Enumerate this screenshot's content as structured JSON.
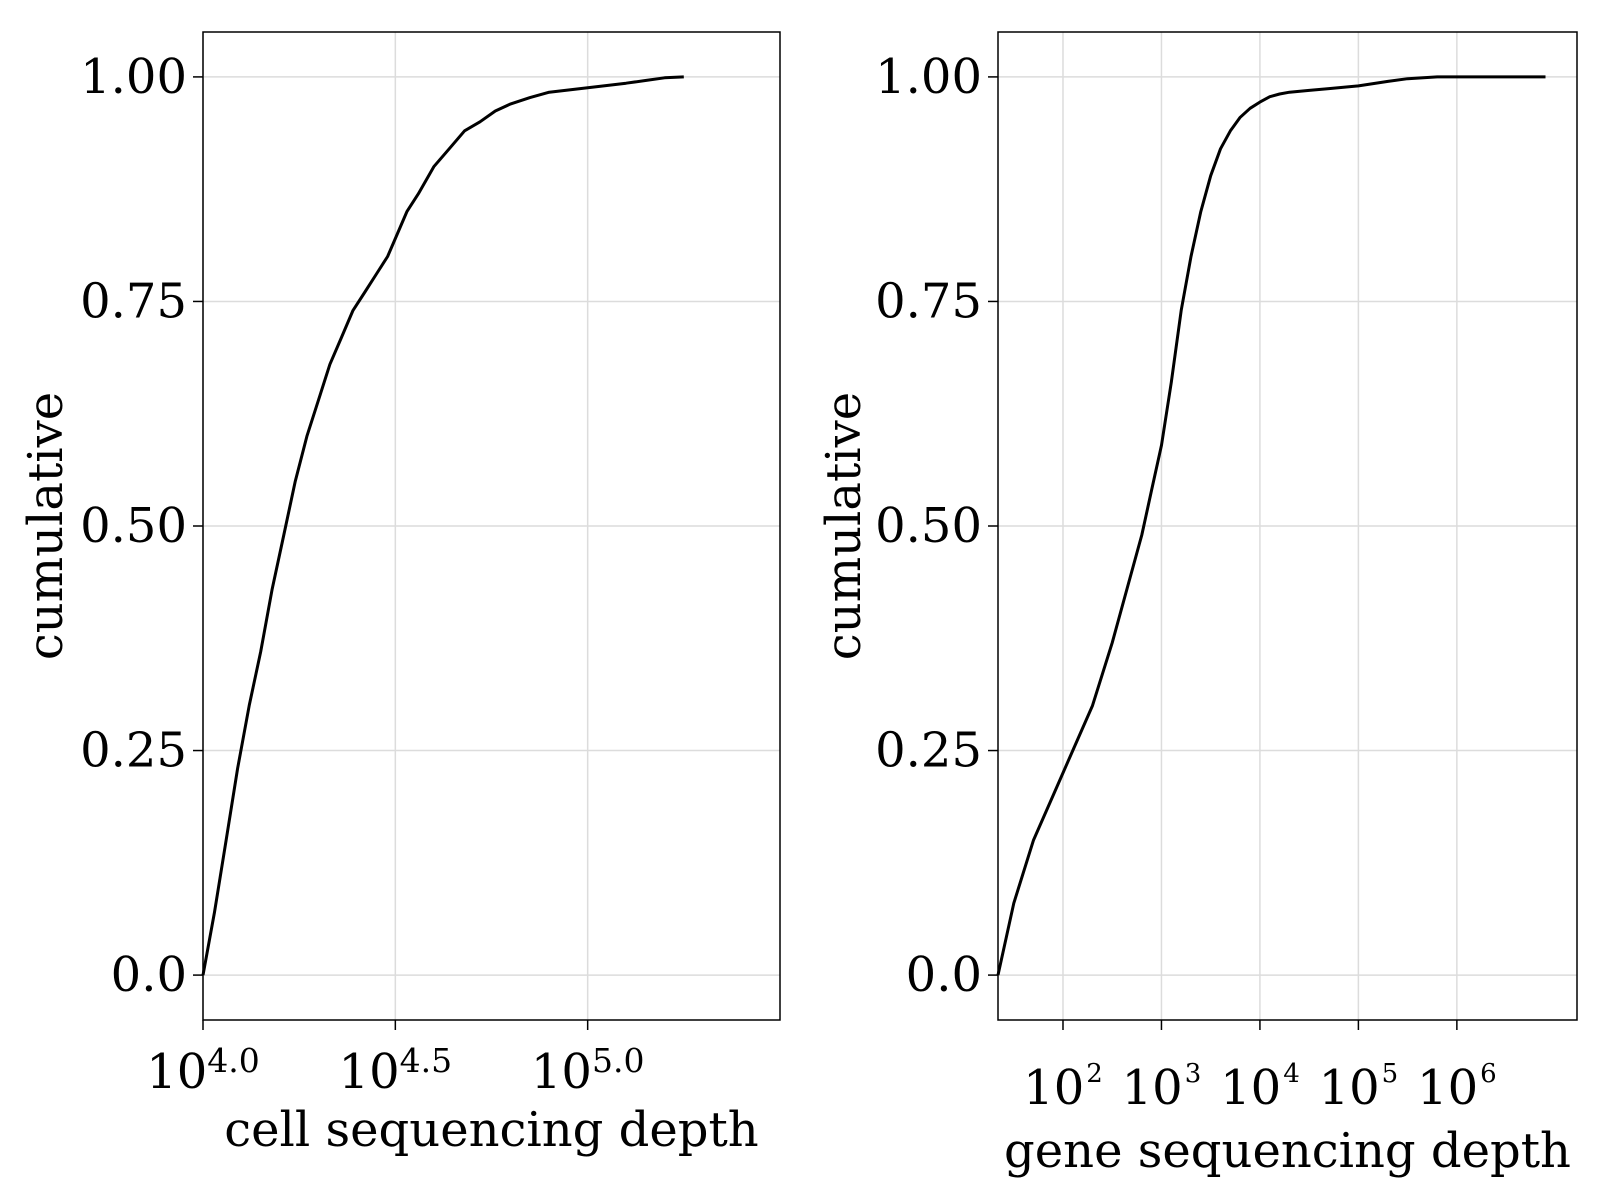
{
  "style": {
    "line_color": "#000000",
    "grid_color": "#dcdcdc",
    "frame_color": "#000000",
    "background": "#ffffff"
  },
  "chart_data": [
    {
      "type": "line",
      "xlabel": "cell sequencing depth",
      "ylabel": "cumulative",
      "xscale": "log10",
      "xlim_log10": [
        4.0,
        5.5
      ],
      "ylim": [
        -0.05,
        1.05
      ],
      "grid": true,
      "legend": "none",
      "y_ticks": [
        0.0,
        0.25,
        0.5,
        0.75,
        1.0
      ],
      "y_tick_labels": [
        "0.0",
        "0.25",
        "0.50",
        "0.75",
        "1.00"
      ],
      "x_ticks": [
        {
          "base": "10",
          "exp": "4.0",
          "log10": 4.0
        },
        {
          "base": "10",
          "exp": "4.5",
          "log10": 4.5
        },
        {
          "base": "10",
          "exp": "5.0",
          "log10": 5.0
        }
      ],
      "series": [
        {
          "x_log10": [
            4.0,
            4.03,
            4.06,
            4.09,
            4.12,
            4.15,
            4.18,
            4.21,
            4.24,
            4.27,
            4.3,
            4.33,
            4.36,
            4.39,
            4.42,
            4.45,
            4.48,
            4.5,
            4.53,
            4.56,
            4.6,
            4.64,
            4.68,
            4.72,
            4.76,
            4.8,
            4.85,
            4.9,
            5.0,
            5.1,
            5.15,
            5.2,
            5.25
          ],
          "y": [
            0.0,
            0.07,
            0.15,
            0.23,
            0.3,
            0.36,
            0.43,
            0.49,
            0.55,
            0.6,
            0.64,
            0.68,
            0.71,
            0.74,
            0.76,
            0.78,
            0.8,
            0.82,
            0.85,
            0.87,
            0.9,
            0.92,
            0.94,
            0.95,
            0.962,
            0.97,
            0.977,
            0.983,
            0.988,
            0.993,
            0.996,
            0.999,
            1.0
          ]
        }
      ]
    },
    {
      "type": "line",
      "xlabel": "gene sequencing depth",
      "ylabel": "cumulative",
      "xscale": "log10",
      "xlim_log10": [
        1.34,
        7.22
      ],
      "ylim": [
        -0.05,
        1.05
      ],
      "grid": true,
      "legend": "none",
      "y_ticks": [
        0.0,
        0.25,
        0.5,
        0.75,
        1.0
      ],
      "y_tick_labels": [
        "0.0",
        "0.25",
        "0.50",
        "0.75",
        "1.00"
      ],
      "x_ticks": [
        {
          "base": "10",
          "exp": "2",
          "log10": 2
        },
        {
          "base": "10",
          "exp": "3",
          "log10": 3
        },
        {
          "base": "10",
          "exp": "4",
          "log10": 4
        },
        {
          "base": "10",
          "exp": "5",
          "log10": 5
        },
        {
          "base": "10",
          "exp": "6",
          "log10": 6
        }
      ],
      "series": [
        {
          "x_log10": [
            1.34,
            1.5,
            1.7,
            1.9,
            2.1,
            2.3,
            2.5,
            2.65,
            2.8,
            2.9,
            3.0,
            3.1,
            3.2,
            3.3,
            3.4,
            3.5,
            3.6,
            3.7,
            3.8,
            3.9,
            4.0,
            4.1,
            4.2,
            4.3,
            4.5,
            4.7,
            5.0,
            5.3,
            5.5,
            5.8,
            6.2,
            6.6,
            6.9
          ],
          "y": [
            0.0,
            0.08,
            0.15,
            0.2,
            0.25,
            0.3,
            0.37,
            0.43,
            0.49,
            0.54,
            0.59,
            0.66,
            0.74,
            0.8,
            0.85,
            0.89,
            0.92,
            0.94,
            0.955,
            0.965,
            0.972,
            0.978,
            0.981,
            0.983,
            0.985,
            0.987,
            0.99,
            0.995,
            0.998,
            1.0,
            1.0,
            1.0,
            1.0
          ]
        }
      ]
    }
  ]
}
